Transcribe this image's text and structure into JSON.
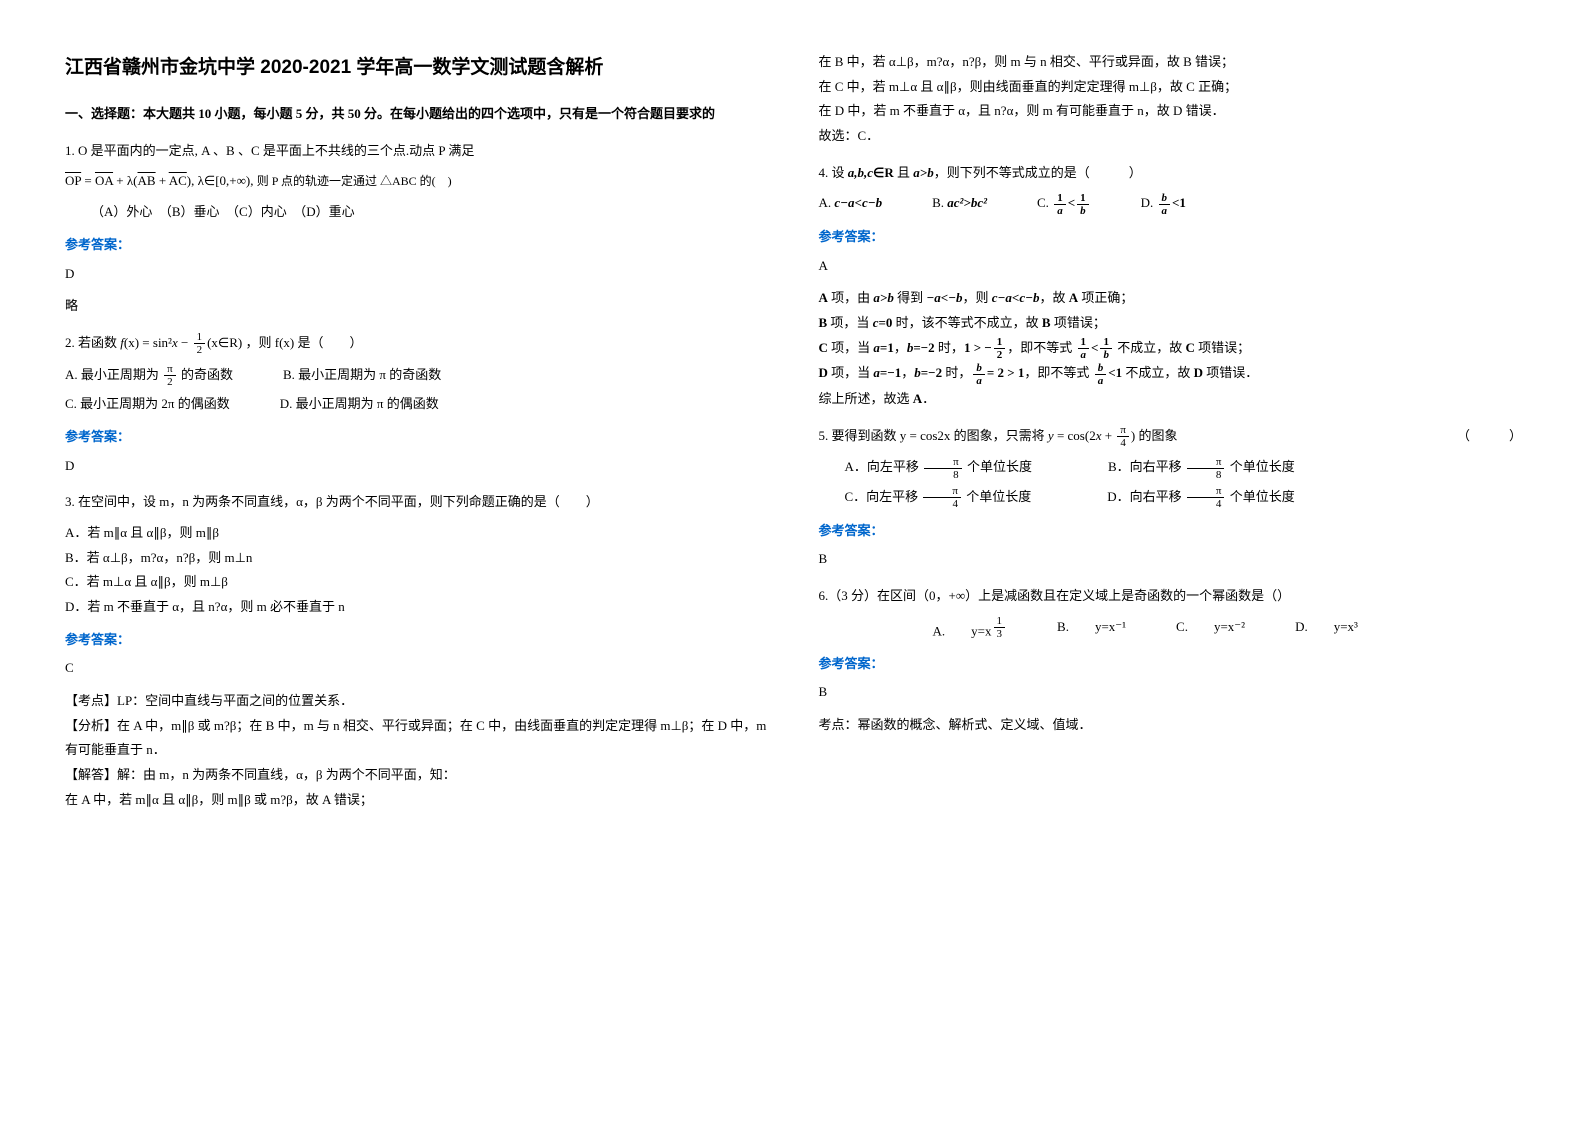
{
  "title": "江西省赣州市金坑中学 2020-2021 学年高一数学文测试题含解析",
  "section1_header": "一、选择题：本大题共 10 小题，每小题 5 分，共 50 分。在每小题给出的四个选项中，只有是一个符合题目要求的",
  "q1": {
    "text": "1. O 是平面内的一定点, A 、B 、C 是平面上不共线的三个点.动点 P 满足",
    "formula": "OP = OA + λ(AB + AC), λ∈[0,+∞), 则 P 点的轨迹一定通过 △ABC 的(　)",
    "opts": "（A）外心　（B）垂心　（C）内心　（D）重心",
    "answer_label": "参考答案：",
    "answer": "D",
    "note": "略"
  },
  "q2": {
    "text_prefix": "2. 若函数",
    "formula": "f(x) = sin²x − ½(x∈R)",
    "text_suffix": "，则 f(x) 是（　　）",
    "optA": "A. 最小正周期为 π/2 的奇函数",
    "optB": "B. 最小正周期为 π 的奇函数",
    "optC": "C. 最小正周期为 2π 的偶函数",
    "optD": "D. 最小正周期为 π 的偶函数",
    "answer_label": "参考答案：",
    "answer": "D"
  },
  "q3": {
    "text": "3. 在空间中，设 m，n 为两条不同直线，α，β 为两个不同平面，则下列命题正确的是（　　）",
    "optA": "A．若 m∥α 且 α∥β，则 m∥β",
    "optB": "B．若 α⊥β，m?α，n?β，则 m⊥n",
    "optC": "C．若 m⊥α 且 α∥β，则 m⊥β",
    "optD": "D．若 m 不垂直于 α，且 n?α，则 m 必不垂直于 n",
    "answer_label": "参考答案：",
    "answer": "C",
    "kaodian": "【考点】LP：空间中直线与平面之间的位置关系．",
    "fenxi": "【分析】在 A 中，m∥β 或 m?β；在 B 中，m 与 n 相交、平行或异面；在 C 中，由线面垂直的判定定理得 m⊥β；在 D 中，m 有可能垂直于 n．",
    "jieda1": "【解答】解：由 m，n 为两条不同直线，α，β 为两个不同平面，知：",
    "jieda2": "在 A 中，若 m∥α 且 α∥β，则 m∥β 或 m?β，故 A 错误；",
    "jieda3": "在 B 中，若 α⊥β，m?α，n?β，则 m 与 n 相交、平行或异面，故 B 错误；",
    "jieda4": "在 C 中，若 m⊥α 且 α∥β，则由线面垂直的判定定理得 m⊥β，故 C 正确；",
    "jieda5": "在 D 中，若 m 不垂直于 α，且 n?α，则 m 有可能垂直于 n，故 D 错误．",
    "jieda6": "故选：C．"
  },
  "q4": {
    "text": "4. 设 a,b,c∈R 且 a>b，则下列不等式成立的是（　　　）",
    "optA": "A. c−a<c−b",
    "optB": "B. ac²>bc²",
    "optC_prefix": "C.",
    "optD_prefix": "D.",
    "answer_label": "参考答案：",
    "answer": "A",
    "expA": "A 项，由 a>b 得到 −a<−b，则 c−a<c−b，故 A 项正确；",
    "expB": "B 项，当 c=0 时，该不等式不成立，故 B 项错误；",
    "expC_prefix": "C 项，当 a=1，b=−2 时，",
    "expC_mid": "1 > −½",
    "expC_suffix": "，即不等式 1/a < 1/b 不成立，故 C 项错误；",
    "expD_prefix": "D 项，当 a=−1，b=−2 时，",
    "expD_mid": "b/a = 2 > 1",
    "expD_suffix": "，即不等式 b/a < 1 不成立，故 D 项错误．",
    "conclusion": "综上所述，故选 A．"
  },
  "q5": {
    "text_prefix": "5. 要得到函数 y = cos2x 的图象，只需将",
    "text_formula": "y = cos(2x + π/4)",
    "text_suffix": "的图象",
    "paren": "（　　　）",
    "optA": "A．向左平移 π/8 个单位长度",
    "optB": "B．向右平移 π/8 个单位长度",
    "optC": "C．向左平移 π/4 个单位长度",
    "optD": "D．向右平移 π/4 个单位长度",
    "answer_label": "参考答案：",
    "answer": "B"
  },
  "q6": {
    "text": "6.（3 分）在区间（0，+∞）上是减函数且在定义域上是奇函数的一个幂函数是（）",
    "optA_prefix": "A.　　y=x",
    "optB": "B.　　y=x⁻¹",
    "optC": "C.　　y=x⁻²",
    "optD": "D.　　y=x³",
    "answer_label": "参考答案：",
    "answer": "B",
    "kaodian": "考点：幂函数的概念、解析式、定义域、值域．"
  }
}
